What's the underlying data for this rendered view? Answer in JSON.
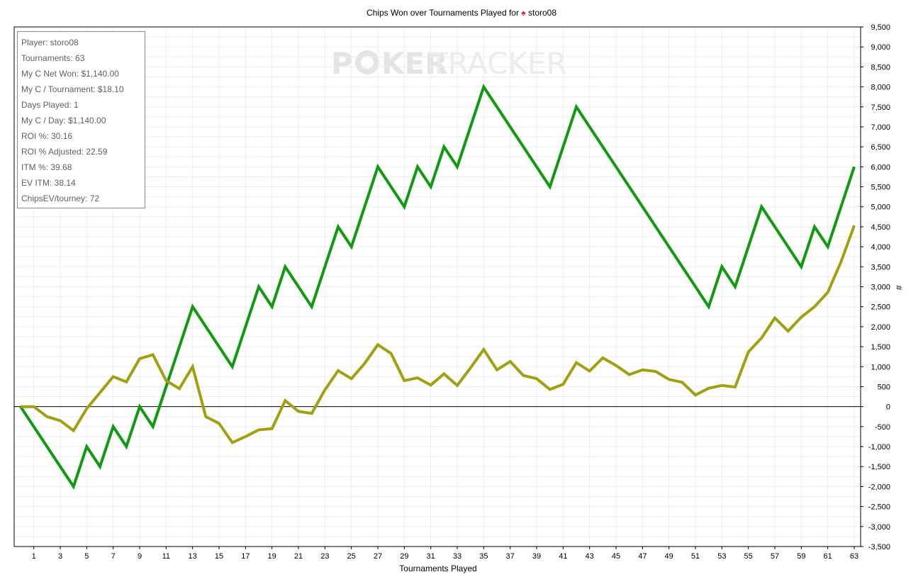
{
  "chart_data": {
    "type": "line",
    "title": "Chips Won over Tournaments Played for",
    "title_player": "storo08",
    "xlabel": "Tournaments Played",
    "ylabel": "#",
    "xlim": [
      0,
      63
    ],
    "ylim": [
      -3500,
      9500
    ],
    "xticks": [
      1,
      3,
      5,
      7,
      9,
      11,
      13,
      15,
      17,
      19,
      21,
      23,
      25,
      27,
      29,
      31,
      33,
      35,
      37,
      39,
      41,
      43,
      45,
      47,
      49,
      51,
      53,
      55,
      57,
      59,
      61,
      63
    ],
    "yticks": [
      9500,
      9000,
      8500,
      8000,
      7500,
      7000,
      6500,
      6000,
      5500,
      5000,
      4500,
      4000,
      3500,
      3000,
      2500,
      2000,
      1500,
      1000,
      500,
      0,
      -500,
      -1000,
      -1500,
      -2000,
      -2500,
      -3000,
      -3500
    ],
    "ytick_labels": [
      "9,500",
      "9,000",
      "8,500",
      "8,000",
      "7,500",
      "7,000",
      "6,500",
      "6,000",
      "5,500",
      "5,000",
      "4,500",
      "4,000",
      "3,500",
      "3,000",
      "2,500",
      "2,000",
      "1,500",
      "1,000",
      "500",
      "0",
      "-500",
      "-1,000",
      "-1,500",
      "-2,000",
      "-2,500",
      "-3,000",
      "-3,500"
    ],
    "grid": true,
    "watermark": {
      "left": "P",
      "chip": "O",
      "mid": "KER",
      "right": "TRACKER"
    },
    "series": [
      {
        "color": "#109a10",
        "points": [
          [
            0,
            0
          ],
          [
            4,
            -2000
          ],
          [
            5,
            -1000
          ],
          [
            6,
            -1500
          ],
          [
            7,
            -500
          ],
          [
            8,
            -1000
          ],
          [
            9,
            0
          ],
          [
            10,
            -500
          ],
          [
            13,
            2500
          ],
          [
            16,
            1000
          ],
          [
            18,
            3000
          ],
          [
            19,
            2500
          ],
          [
            20,
            3500
          ],
          [
            22,
            2500
          ],
          [
            24,
            4500
          ],
          [
            25,
            4000
          ],
          [
            27,
            6000
          ],
          [
            29,
            5000
          ],
          [
            30,
            6000
          ],
          [
            31,
            5500
          ],
          [
            32,
            6500
          ],
          [
            33,
            6000
          ],
          [
            35,
            8000
          ],
          [
            40,
            5500
          ],
          [
            42,
            7500
          ],
          [
            52,
            2500
          ],
          [
            53,
            3500
          ],
          [
            54,
            3000
          ],
          [
            56,
            5000
          ],
          [
            59,
            3500
          ],
          [
            60,
            4500
          ],
          [
            61,
            4000
          ],
          [
            63,
            6000
          ]
        ]
      },
      {
        "color": "#a0a010",
        "points": [
          [
            0,
            0
          ],
          [
            1,
            0
          ],
          [
            2,
            -250
          ],
          [
            3,
            -350
          ],
          [
            4,
            -600
          ],
          [
            5,
            -50
          ],
          [
            6,
            350
          ],
          [
            7,
            750
          ],
          [
            8,
            620
          ],
          [
            9,
            1200
          ],
          [
            10,
            1300
          ],
          [
            11,
            650
          ],
          [
            12,
            450
          ],
          [
            13,
            1000
          ],
          [
            14,
            -250
          ],
          [
            15,
            -420
          ],
          [
            16,
            -900
          ],
          [
            17,
            -750
          ],
          [
            18,
            -580
          ],
          [
            19,
            -550
          ],
          [
            20,
            150
          ],
          [
            21,
            -120
          ],
          [
            22,
            -170
          ],
          [
            23,
            420
          ],
          [
            24,
            900
          ],
          [
            25,
            700
          ],
          [
            26,
            1080
          ],
          [
            27,
            1550
          ],
          [
            28,
            1330
          ],
          [
            29,
            650
          ],
          [
            30,
            720
          ],
          [
            31,
            540
          ],
          [
            32,
            820
          ],
          [
            33,
            530
          ],
          [
            34,
            970
          ],
          [
            35,
            1430
          ],
          [
            36,
            920
          ],
          [
            37,
            1130
          ],
          [
            38,
            780
          ],
          [
            39,
            700
          ],
          [
            40,
            430
          ],
          [
            41,
            560
          ],
          [
            42,
            1100
          ],
          [
            43,
            890
          ],
          [
            44,
            1220
          ],
          [
            45,
            1030
          ],
          [
            46,
            800
          ],
          [
            47,
            920
          ],
          [
            48,
            880
          ],
          [
            49,
            680
          ],
          [
            50,
            610
          ],
          [
            51,
            290
          ],
          [
            52,
            460
          ],
          [
            53,
            530
          ],
          [
            54,
            490
          ],
          [
            55,
            1370
          ],
          [
            56,
            1720
          ],
          [
            57,
            2220
          ],
          [
            58,
            1890
          ],
          [
            59,
            2240
          ],
          [
            60,
            2500
          ],
          [
            61,
            2860
          ],
          [
            62,
            3620
          ],
          [
            63,
            4530
          ]
        ]
      }
    ]
  },
  "stats": [
    "Player: storo08",
    "Tournaments: 63",
    "My C Net Won: $1,140.00",
    "My C / Tournament: $18.10",
    "Days Played: 1",
    "My C / Day: $1,140.00",
    "ROI %: 30.16",
    "ROI % Adjusted: 22.59",
    "ITM %: 39.68",
    "EV ITM: 38.14",
    "ChipsEV/tourney: 72"
  ],
  "colors": {
    "grid": "#ededed",
    "axis": "#000000",
    "zero_line": "#000000",
    "spade": "#d42b2b"
  },
  "icons": {
    "title_icon": "spade-icon",
    "watermark_chip": "poker-chip-icon"
  }
}
